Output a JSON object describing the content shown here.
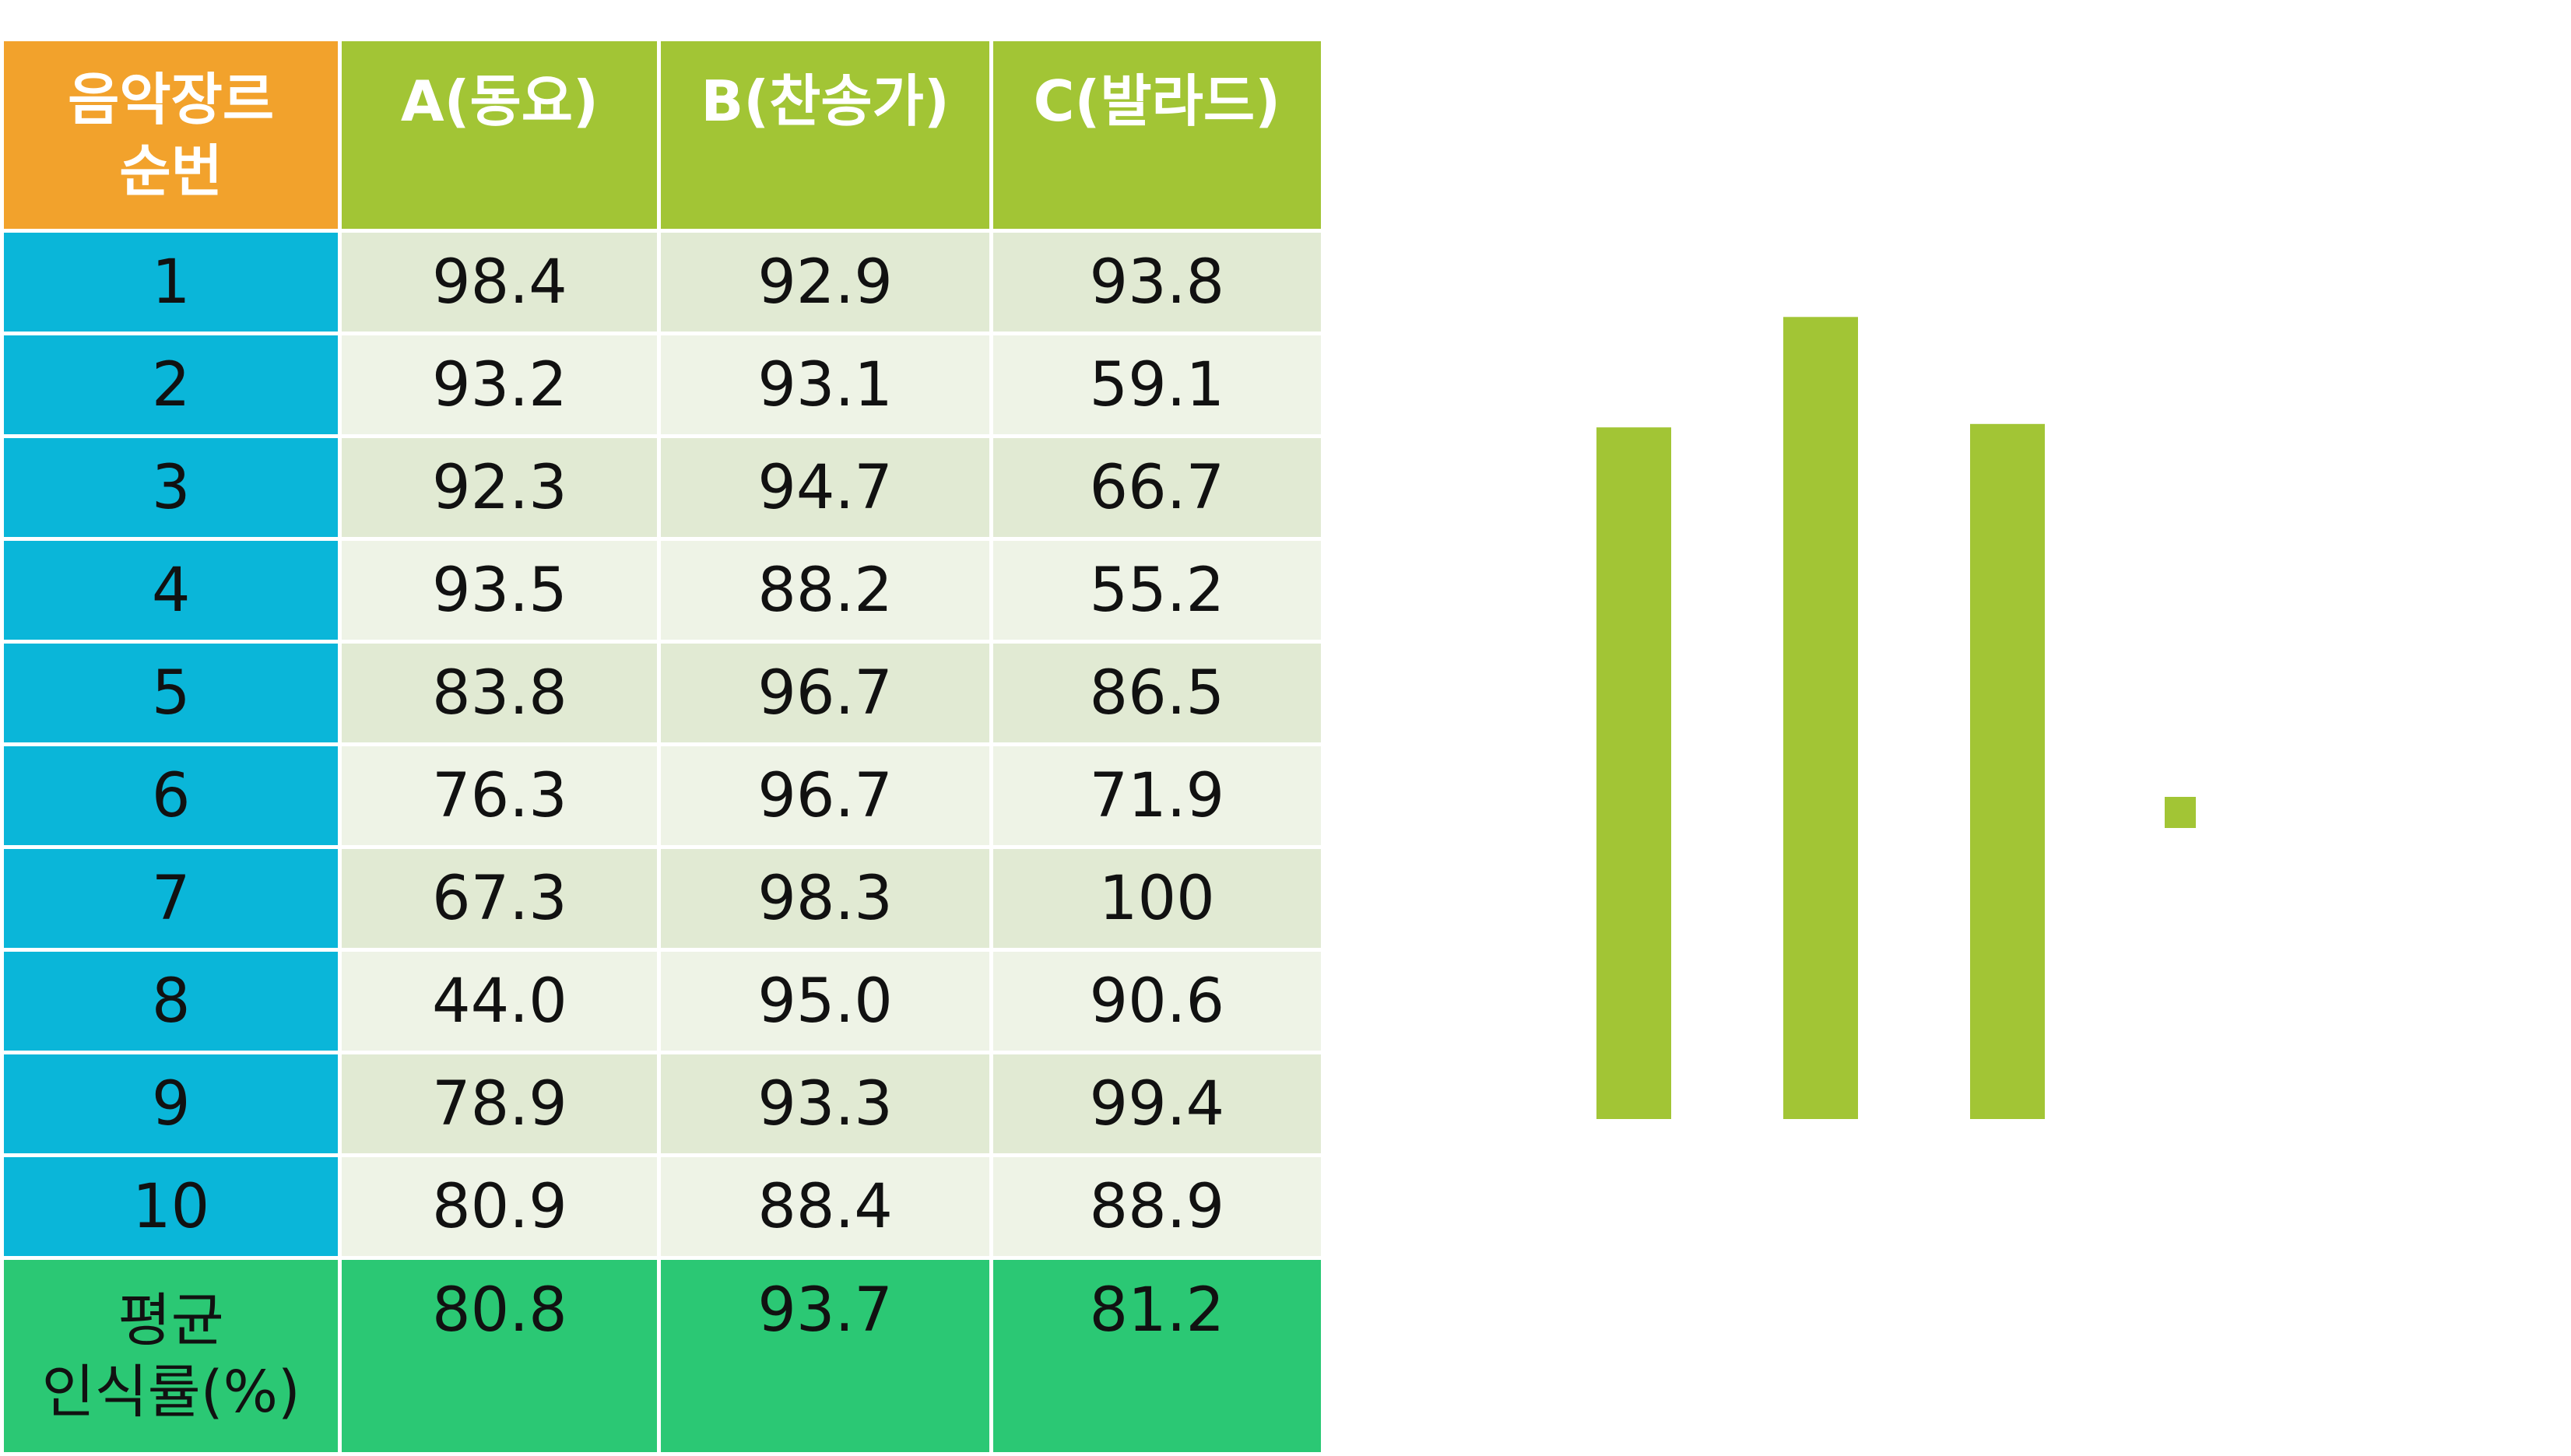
{
  "table": {
    "corner_header": [
      "음악장르",
      "순번"
    ],
    "columns": [
      "A(동요)",
      "B(찬송가)",
      "C(발라드)"
    ],
    "rows": [
      {
        "idx": "1",
        "values": [
          "98.4",
          "92.9",
          "93.8"
        ]
      },
      {
        "idx": "2",
        "values": [
          "93.2",
          "93.1",
          "59.1"
        ]
      },
      {
        "idx": "3",
        "values": [
          "92.3",
          "94.7",
          "66.7"
        ]
      },
      {
        "idx": "4",
        "values": [
          "93.5",
          "88.2",
          "55.2"
        ]
      },
      {
        "idx": "5",
        "values": [
          "83.8",
          "96.7",
          "86.5"
        ]
      },
      {
        "idx": "6",
        "values": [
          "76.3",
          "96.7",
          "71.9"
        ]
      },
      {
        "idx": "7",
        "values": [
          "67.3",
          "98.3",
          "100"
        ]
      },
      {
        "idx": "8",
        "values": [
          "44.0",
          "95.0",
          "90.6"
        ]
      },
      {
        "idx": "9",
        "values": [
          "78.9",
          "93.3",
          "99.4"
        ]
      },
      {
        "idx": "10",
        "values": [
          "80.9",
          "88.4",
          "88.9"
        ]
      }
    ],
    "average_label": [
      "평균",
      "인식률(%)"
    ],
    "average_values": [
      "80.8",
      "93.7",
      "81.2"
    ]
  },
  "colors": {
    "corner": "#f2a22c",
    "header": "#a2c535",
    "index": "#0ab6d9",
    "row_odd": "#e1ead3",
    "row_even": "#eef3e6",
    "average": "#2bc874",
    "bar": "#a2c535"
  },
  "chart_data": {
    "type": "bar",
    "categories": [
      "A(동요)",
      "B(찬송가)",
      "C(발라드)"
    ],
    "series": [
      {
        "values": [
          80.8,
          93.7,
          81.2
        ]
      }
    ],
    "ylim": [
      0,
      100
    ],
    "axes_visible": false,
    "grid": false,
    "legend": "square marker to the right, no text"
  }
}
